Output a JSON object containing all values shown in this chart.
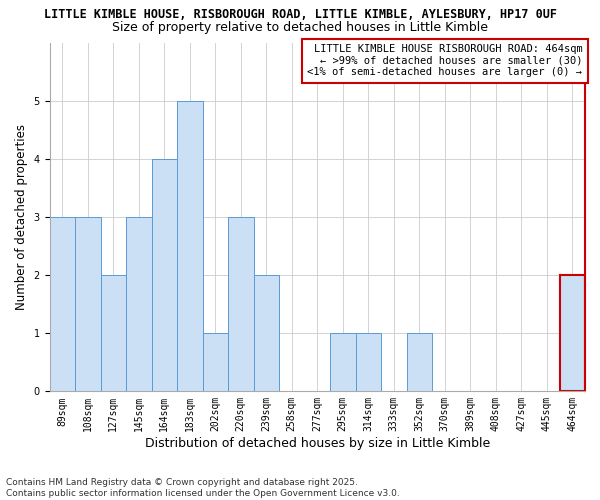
{
  "title1": "LITTLE KIMBLE HOUSE, RISBOROUGH ROAD, LITTLE KIMBLE, AYLESBURY, HP17 0UF",
  "title2": "Size of property relative to detached houses in Little Kimble",
  "xlabel": "Distribution of detached houses by size in Little Kimble",
  "ylabel": "Number of detached properties",
  "categories": [
    "89sqm",
    "108sqm",
    "127sqm",
    "145sqm",
    "164sqm",
    "183sqm",
    "202sqm",
    "220sqm",
    "239sqm",
    "258sqm",
    "277sqm",
    "295sqm",
    "314sqm",
    "333sqm",
    "352sqm",
    "370sqm",
    "389sqm",
    "408sqm",
    "427sqm",
    "445sqm",
    "464sqm"
  ],
  "values": [
    3,
    3,
    2,
    3,
    4,
    5,
    1,
    3,
    2,
    0,
    0,
    1,
    1,
    0,
    1,
    0,
    0,
    0,
    0,
    0,
    2
  ],
  "highlight_index": 20,
  "bar_color": "#cce0f5",
  "bar_edge_color": "#5b9bd5",
  "highlight_bar_edge_color": "#cc0000",
  "annotation_line1": "LITTLE KIMBLE HOUSE RISBOROUGH ROAD: 464sqm",
  "annotation_line2": "← >99% of detached houses are smaller (30)",
  "annotation_line3": "<1% of semi-detached houses are larger (0) →",
  "annotation_box_edge_color": "#cc0000",
  "annotation_box_facecolor": "#ffffff",
  "right_spine_color": "#cc0000",
  "ylim": [
    0,
    6
  ],
  "yticks": [
    0,
    1,
    2,
    3,
    4,
    5,
    6
  ],
  "background_color": "#ffffff",
  "grid_color": "#cccccc",
  "title1_fontsize": 8.5,
  "title2_fontsize": 9,
  "tick_fontsize": 7,
  "ylabel_fontsize": 8.5,
  "xlabel_fontsize": 9,
  "annotation_fontsize": 7.5,
  "footer_fontsize": 6.5
}
